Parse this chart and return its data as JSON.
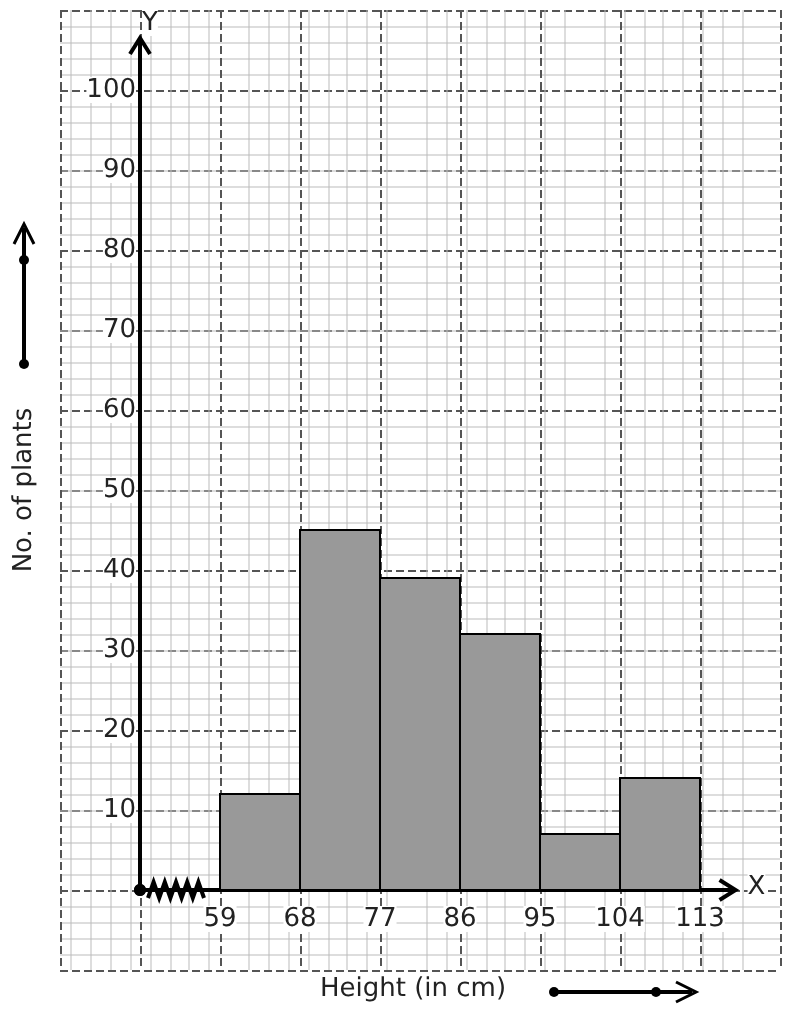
{
  "chart_data": {
    "type": "histogram",
    "xlabel": "Height (in cm)",
    "ylabel": "No. of plants",
    "bins": [
      59,
      68,
      77,
      86,
      95,
      104,
      113
    ],
    "values": [
      12,
      45,
      39,
      32,
      7,
      14
    ],
    "color": "#999999",
    "xlim": [
      41,
      122
    ],
    "xticks": [
      {
        "value": 41,
        "label": null
      },
      {
        "value": 50,
        "label": null
      },
      59,
      68,
      77,
      86,
      95,
      104,
      113,
      {
        "value": 122,
        "label": null
      }
    ],
    "ylim": [
      -10,
      110
    ],
    "yticks": [
      {
        "value": -10,
        "label": null
      },
      {
        "value": 0,
        "label": null
      },
      10,
      20,
      30,
      40,
      50,
      60,
      70,
      80,
      90,
      100,
      {
        "value": 110,
        "label": null
      }
    ],
    "grid": true,
    "annotations": [
      "X",
      "Y"
    ]
  }
}
